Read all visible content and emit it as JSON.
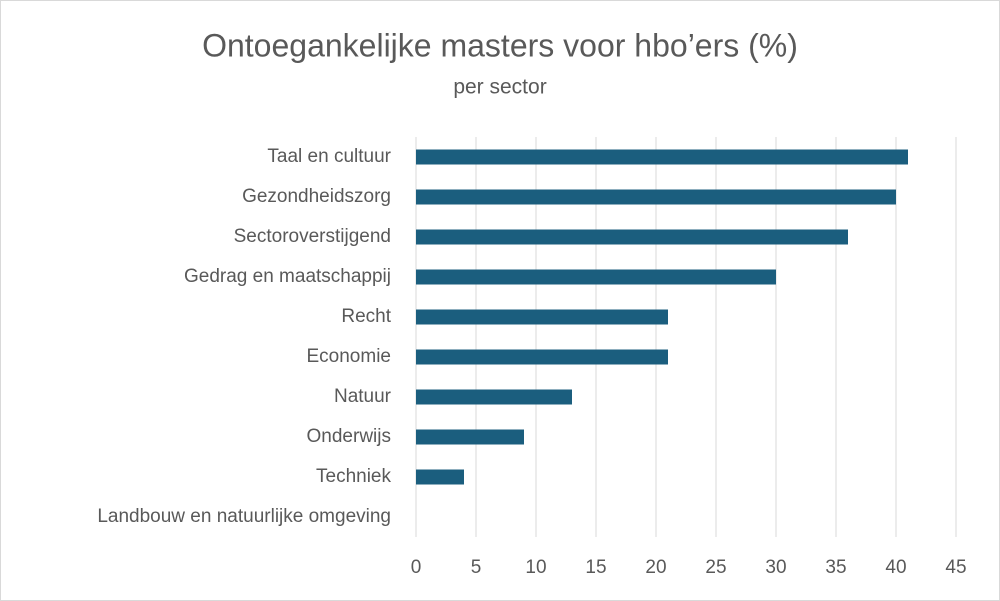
{
  "chart_data": {
    "type": "bar",
    "orientation": "horizontal",
    "title": "Ontoegankelijke masters voor hbo’ers (%)",
    "subtitle": "per sector",
    "categories": [
      "Taal en cultuur",
      "Gezondheidszorg",
      "Sectoroverstijgend",
      "Gedrag en maatschappij",
      "Recht",
      "Economie",
      "Natuur",
      "Onderwijs",
      "Techniek",
      "Landbouw en natuurlijke omgeving"
    ],
    "values": [
      41,
      40,
      36,
      30,
      21,
      21,
      13,
      9,
      4,
      0
    ],
    "color": "#1b5e7e",
    "xlim": [
      0,
      45
    ],
    "xticks": [
      0,
      5,
      10,
      15,
      20,
      25,
      30,
      35,
      40,
      45
    ],
    "grid": true
  }
}
